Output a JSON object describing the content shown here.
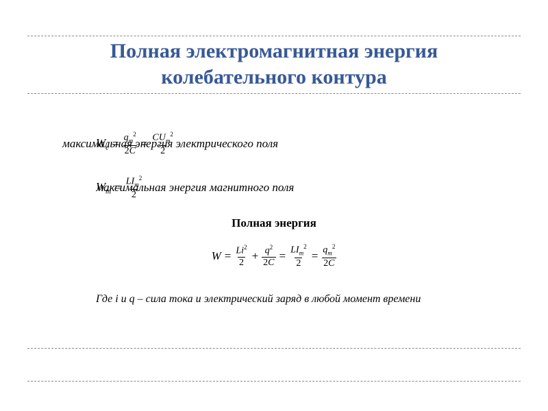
{
  "title_color": "#385996",
  "title_line1": "Полная электромагнитная энергия",
  "title_line2": "колебательного контура",
  "electric": {
    "W_sym": "W",
    "W_sub": "e",
    "eq": "=",
    "f1_num_a": "q",
    "f1_num_sub": "m",
    "f1_num_sup": "2",
    "f1_den_a": "2",
    "f1_den_b": "C",
    "f2_num_a": "CU",
    "f2_num_sub": "m",
    "f2_num_sup": "2",
    "f2_den": "2",
    "desc": "максимальная энергия электрического поля"
  },
  "magnetic": {
    "W_sym": "W",
    "W_sub": "m",
    "eq": "=",
    "f1_num_a": "LI",
    "f1_num_sub": "m",
    "f1_num_sup": "2",
    "f1_den": "2",
    "desc": "максимальная энергия магнитного поля"
  },
  "full_label": "Полная энергия",
  "full_formula": {
    "W": "W",
    "eq": "=",
    "t1_num": "Li",
    "t1_sup": "2",
    "t1_den": "2",
    "plus": "+",
    "t2_num": "q",
    "t2_sup": "2",
    "t2_den_a": "2",
    "t2_den_b": "C",
    "t3_num_a": "LI",
    "t3_num_sub": "m",
    "t3_num_sup": "2",
    "t3_den": "2",
    "t4_num_a": "q",
    "t4_num_sub": "m",
    "t4_num_sup": "2",
    "t4_den_a": "2",
    "t4_den_b": "C"
  },
  "footnote": "Где i и q – сила тока и электрический заряд в любой момент времени"
}
